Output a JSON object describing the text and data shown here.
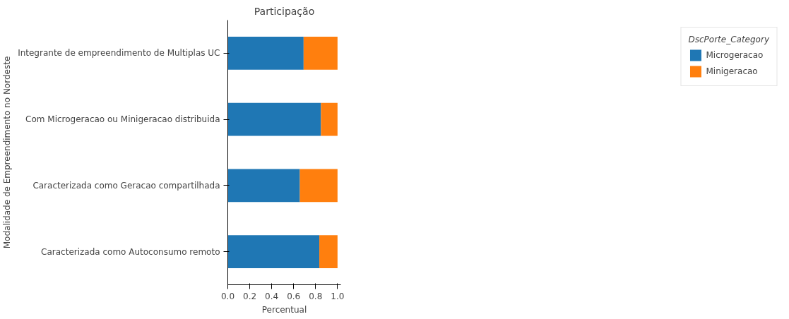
{
  "chart_data": {
    "type": "bar",
    "orientation": "horizontal",
    "stacked": true,
    "title": "Participação",
    "xlabel": "Percentual",
    "ylabel": "Modalidade de Empreendimento no Nordeste",
    "legend_title": "DscPorte_Category",
    "categories": [
      "Integrante de empreendimento de Multiplas UC",
      "Com Microgeracao ou Minigeracao distribuida",
      "Caracterizada como Geracao compartilhada",
      "Caracterizada como Autoconsumo remoto"
    ],
    "series": [
      {
        "name": "Microgeracao",
        "color": "#1f77b4",
        "values": [
          0.691,
          0.849,
          0.657,
          0.834
        ]
      },
      {
        "name": "Minigeracao",
        "color": "#ff7f0e",
        "values": [
          0.309,
          0.151,
          0.343,
          0.166
        ]
      }
    ],
    "xlim": [
      0,
      1.03
    ],
    "xticks": [
      {
        "value": 0,
        "label": "0.0"
      },
      0.2,
      0.4,
      0.6,
      0.8,
      {
        "value": 1,
        "label": "1.0"
      }
    ],
    "grid": false,
    "legend": "right"
  }
}
